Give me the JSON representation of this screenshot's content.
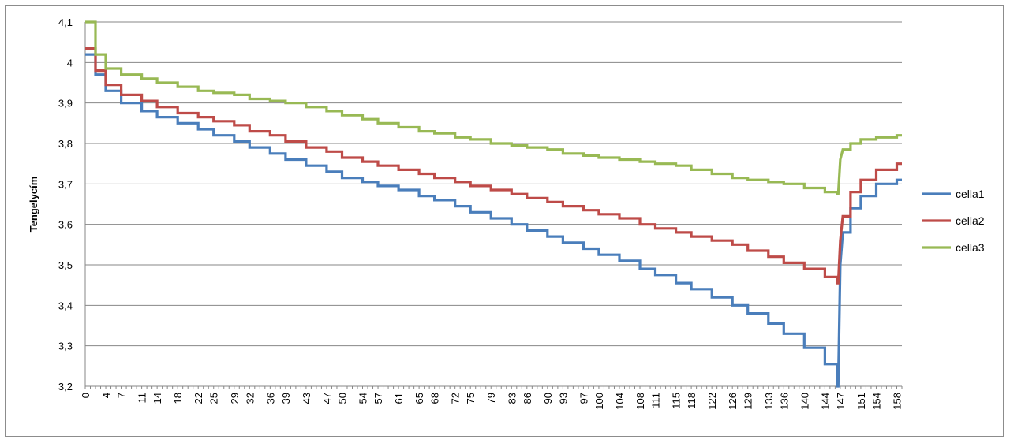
{
  "chart_data": {
    "type": "line",
    "title": "",
    "xlabel": "",
    "ylabel": "Tengelycím",
    "xlim": [
      0,
      159
    ],
    "ylim": [
      3.2,
      4.1
    ],
    "y_ticks": [
      "3,2",
      "3,3",
      "3,4",
      "3,5",
      "3,6",
      "3,7",
      "3,8",
      "3,9",
      "4",
      "4,1"
    ],
    "x_ticks": [
      "0",
      "4",
      "7",
      "11",
      "14",
      "18",
      "22",
      "25",
      "29",
      "32",
      "36",
      "39",
      "43",
      "47",
      "50",
      "54",
      "57",
      "61",
      "65",
      "68",
      "72",
      "75",
      "79",
      "83",
      "86",
      "90",
      "93",
      "97",
      "100",
      "104",
      "108",
      "111",
      "115",
      "118",
      "122",
      "126",
      "129",
      "133",
      "136",
      "140",
      "144",
      "147",
      "151",
      "154",
      "158"
    ],
    "grid": "horizontal",
    "legend_position": "right",
    "series": [
      {
        "name": "cella1",
        "color": "#4a7ebb",
        "x": [
          0,
          2,
          4,
          7,
          11,
          14,
          18,
          22,
          25,
          29,
          32,
          36,
          39,
          43,
          47,
          50,
          54,
          57,
          61,
          65,
          68,
          72,
          75,
          79,
          83,
          86,
          90,
          93,
          97,
          100,
          104,
          108,
          111,
          115,
          118,
          122,
          126,
          129,
          133,
          136,
          140,
          144,
          146.5,
          146.6,
          147,
          147.5,
          149,
          151,
          154,
          158,
          159
        ],
        "y": [
          4.02,
          3.97,
          3.93,
          3.9,
          3.88,
          3.865,
          3.85,
          3.835,
          3.82,
          3.805,
          3.79,
          3.775,
          3.76,
          3.745,
          3.73,
          3.715,
          3.705,
          3.695,
          3.685,
          3.67,
          3.66,
          3.645,
          3.63,
          3.615,
          3.6,
          3.585,
          3.57,
          3.555,
          3.54,
          3.525,
          3.51,
          3.49,
          3.475,
          3.455,
          3.44,
          3.42,
          3.4,
          3.38,
          3.355,
          3.33,
          3.295,
          3.255,
          3.2,
          3.2,
          3.5,
          3.58,
          3.64,
          3.67,
          3.7,
          3.71,
          3.71
        ]
      },
      {
        "name": "cella2",
        "color": "#be4b48",
        "x": [
          0,
          2,
          4,
          7,
          11,
          14,
          18,
          22,
          25,
          29,
          32,
          36,
          39,
          43,
          47,
          50,
          54,
          57,
          61,
          65,
          68,
          72,
          75,
          79,
          83,
          86,
          90,
          93,
          97,
          100,
          104,
          108,
          111,
          115,
          118,
          122,
          126,
          129,
          133,
          136,
          140,
          144,
          146.5,
          146.6,
          147,
          147.5,
          149,
          151,
          154,
          158,
          159
        ],
        "y": [
          4.035,
          3.98,
          3.945,
          3.92,
          3.905,
          3.89,
          3.875,
          3.865,
          3.855,
          3.845,
          3.83,
          3.82,
          3.805,
          3.79,
          3.78,
          3.765,
          3.755,
          3.745,
          3.735,
          3.725,
          3.715,
          3.705,
          3.695,
          3.685,
          3.675,
          3.665,
          3.655,
          3.645,
          3.635,
          3.625,
          3.615,
          3.6,
          3.59,
          3.58,
          3.57,
          3.56,
          3.55,
          3.535,
          3.52,
          3.505,
          3.49,
          3.47,
          3.455,
          3.455,
          3.56,
          3.62,
          3.68,
          3.71,
          3.735,
          3.75,
          3.75
        ]
      },
      {
        "name": "cella3",
        "color": "#98b954",
        "x": [
          0,
          2,
          4,
          7,
          11,
          14,
          18,
          22,
          25,
          29,
          32,
          36,
          39,
          43,
          47,
          50,
          54,
          57,
          61,
          65,
          68,
          72,
          75,
          79,
          83,
          86,
          90,
          93,
          97,
          100,
          104,
          108,
          111,
          115,
          118,
          122,
          126,
          129,
          133,
          136,
          140,
          144,
          146.5,
          146.6,
          147,
          147.5,
          149,
          151,
          154,
          158,
          159
        ],
        "y": [
          4.1,
          4.02,
          3.985,
          3.97,
          3.96,
          3.95,
          3.94,
          3.93,
          3.925,
          3.92,
          3.91,
          3.905,
          3.9,
          3.89,
          3.88,
          3.87,
          3.86,
          3.85,
          3.84,
          3.83,
          3.825,
          3.815,
          3.81,
          3.8,
          3.795,
          3.79,
          3.785,
          3.775,
          3.77,
          3.765,
          3.76,
          3.755,
          3.75,
          3.745,
          3.735,
          3.725,
          3.715,
          3.71,
          3.705,
          3.7,
          3.69,
          3.68,
          3.675,
          3.675,
          3.76,
          3.785,
          3.8,
          3.81,
          3.815,
          3.82,
          3.82
        ]
      }
    ]
  }
}
